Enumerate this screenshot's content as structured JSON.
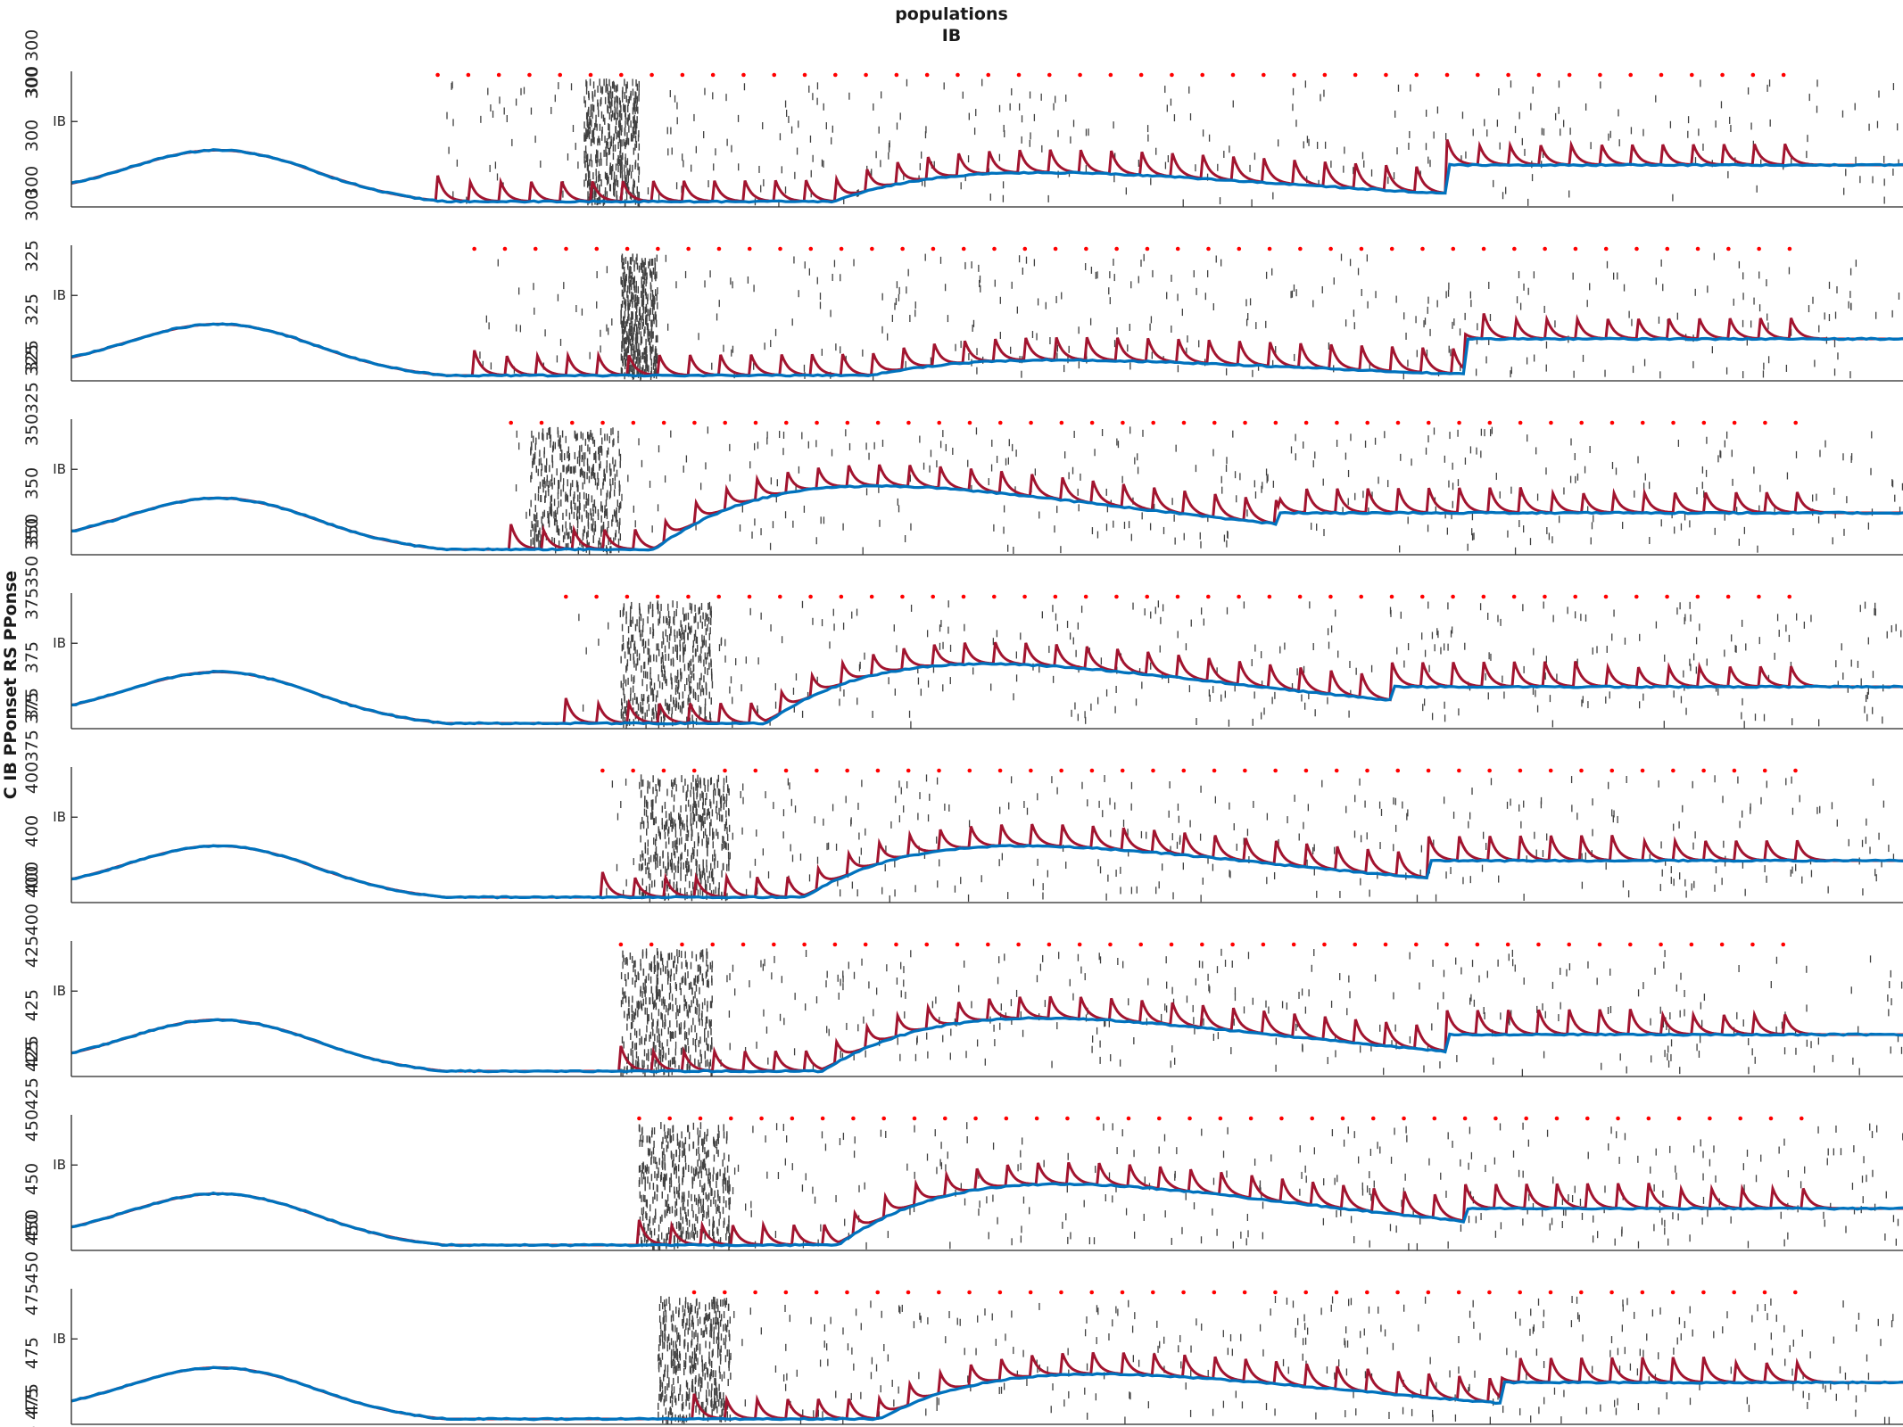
{
  "figure": {
    "title_line1": "populations",
    "title_line2": "IB",
    "ylabel": "C IB PPonset RS PPonse"
  },
  "chart_data": {
    "type": "line",
    "title": [
      "populations",
      "IB"
    ],
    "ylabel": "C IB PPonset RS PPonse",
    "xlabel": "",
    "grid": false,
    "legend": "none",
    "colors": {
      "spikes": "#404040",
      "pulses": "#ff0000",
      "signal_red": "#a2142f",
      "signal_blue": "#0072bd"
    },
    "panels": [
      {
        "name": "300",
        "ytick_label": "IB",
        "vertical_labels": [
          "300",
          "300",
          "300",
          "300",
          "300 300"
        ],
        "burst_x": 0.28,
        "burst_width": 0.03,
        "pulse_start": 0.2,
        "pulse_period": 0.0167,
        "blue_shift": 0.45,
        "blue_peak": 0.52
      },
      {
        "name": "325",
        "ytick_label": "IB",
        "vertical_labels": [
          "325",
          "325",
          "325",
          "325 325"
        ],
        "burst_x": 0.3,
        "burst_width": 0.02,
        "pulse_start": 0.22,
        "pulse_period": 0.0167,
        "blue_shift": 0.46,
        "blue_peak": 0.35
      },
      {
        "name": "350",
        "ytick_label": "IB",
        "vertical_labels": [
          "350",
          "350",
          "350",
          "350 350"
        ],
        "burst_x": 0.25,
        "burst_width": 0.05,
        "pulse_start": 0.24,
        "pulse_period": 0.0167,
        "blue_shift": 0.36,
        "blue_peak": 0.95
      },
      {
        "name": "375",
        "ytick_label": "IB",
        "vertical_labels": [
          "375",
          "375",
          "375",
          "375 375"
        ],
        "burst_x": 0.3,
        "burst_width": 0.05,
        "pulse_start": 0.27,
        "pulse_period": 0.0167,
        "blue_shift": 0.42,
        "blue_peak": 0.9
      },
      {
        "name": "400",
        "ytick_label": "IB",
        "vertical_labels": [
          "400",
          "400",
          "400",
          "400 400"
        ],
        "burst_x": 0.31,
        "burst_width": 0.05,
        "pulse_start": 0.29,
        "pulse_period": 0.0167,
        "blue_shift": 0.44,
        "blue_peak": 0.8
      },
      {
        "name": "425",
        "ytick_label": "IB",
        "vertical_labels": [
          "425",
          "425",
          "425",
          "425 425"
        ],
        "burst_x": 0.3,
        "burst_width": 0.05,
        "pulse_start": 0.3,
        "pulse_period": 0.0167,
        "blue_shift": 0.45,
        "blue_peak": 0.82
      },
      {
        "name": "450",
        "ytick_label": "IB",
        "vertical_labels": [
          "450",
          "450",
          "450",
          "450 450"
        ],
        "burst_x": 0.31,
        "burst_width": 0.05,
        "pulse_start": 0.31,
        "pulse_period": 0.0167,
        "blue_shift": 0.46,
        "blue_peak": 0.92
      },
      {
        "name": "475",
        "ytick_label": "IB",
        "vertical_labels": [
          "475",
          "475",
          "475",
          "475 475"
        ],
        "burst_x": 0.32,
        "burst_width": 0.04,
        "pulse_start": 0.34,
        "pulse_period": 0.0167,
        "blue_shift": 0.48,
        "blue_peak": 0.72
      }
    ]
  }
}
